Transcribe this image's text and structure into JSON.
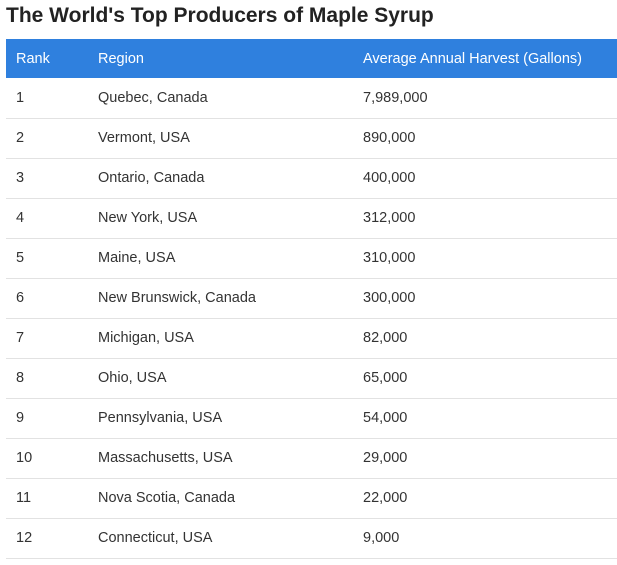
{
  "title": "The World's Top Producers of Maple Syrup",
  "table": {
    "columns": [
      "Rank",
      "Region",
      "Average Annual Harvest (Gallons)"
    ],
    "rows": [
      [
        "1",
        "Quebec, Canada",
        "7,989,000"
      ],
      [
        "2",
        "Vermont, USA",
        "890,000"
      ],
      [
        "3",
        "Ontario, Canada",
        "400,000"
      ],
      [
        "4",
        "New York, USA",
        "312,000"
      ],
      [
        "5",
        "Maine, USA",
        "310,000"
      ],
      [
        "6",
        "New Brunswick, Canada",
        "300,000"
      ],
      [
        "7",
        "Michigan, USA",
        "82,000"
      ],
      [
        "8",
        "Ohio, USA",
        "65,000"
      ],
      [
        "9",
        "Pennsylvania, USA",
        "54,000"
      ],
      [
        "10",
        "Massachusetts, USA",
        "29,000"
      ],
      [
        "11",
        "Nova Scotia, Canada",
        "22,000"
      ],
      [
        "12",
        "Connecticut, USA",
        "9,000"
      ]
    ]
  },
  "colors": {
    "header_background": "#2f80de",
    "header_text": "#ffffff",
    "row_divider": "#e2e2e2"
  }
}
